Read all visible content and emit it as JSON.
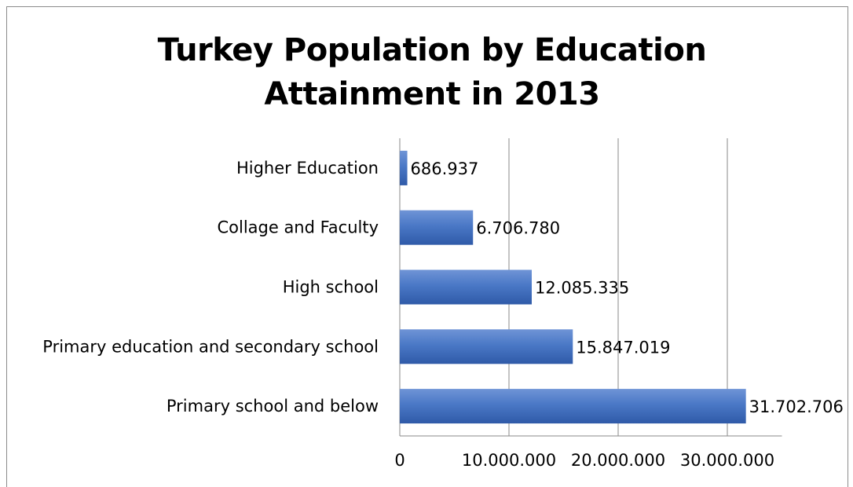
{
  "chart_data": {
    "type": "bar",
    "orientation": "horizontal",
    "title": "Turkey Population by Education Attainment in 2013",
    "title_lines": [
      "Turkey Population by Education",
      "Attainment in 2013"
    ],
    "xlabel": "",
    "ylabel": "",
    "categories": [
      "Higher Education",
      "Collage and Faculty",
      "High school",
      "Primary education and secondary school",
      "Primary school and below"
    ],
    "values": [
      686937,
      6706780,
      12085335,
      15847019,
      31702706
    ],
    "value_labels": [
      "686.937",
      "6.706.780",
      "12.085.335",
      "15.847.019",
      "31.702.706"
    ],
    "xlim": [
      0,
      35000000
    ],
    "x_ticks": [
      0,
      10000000,
      20000000,
      30000000
    ],
    "x_tick_labels": [
      "0",
      "10.000.000",
      "20.000.000",
      "30.000.000"
    ],
    "grid": "vertical",
    "legend": "none",
    "bar_color": "#4472c4"
  }
}
